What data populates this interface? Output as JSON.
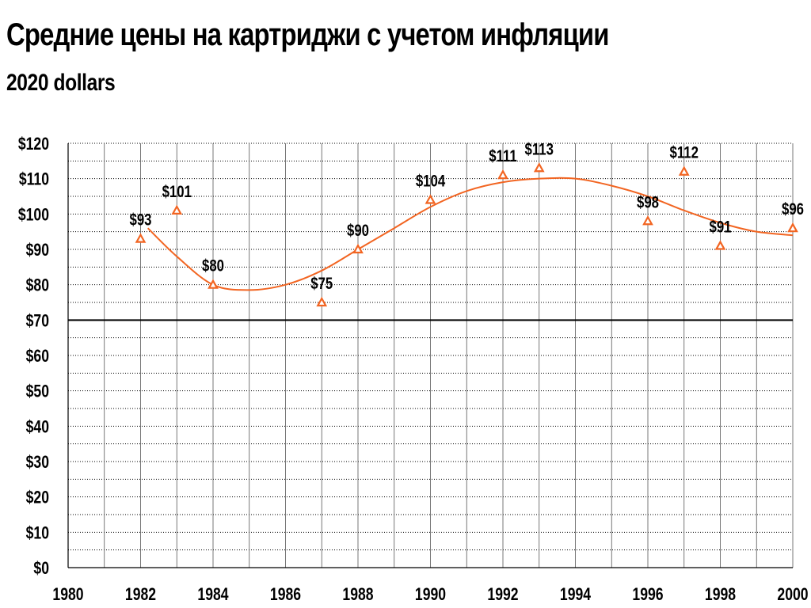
{
  "header": {
    "title": "Средние цены на картриджи с учетом инфляции",
    "subtitle": "2020 dollars"
  },
  "colors": {
    "series": "#f26522",
    "grid": "#000000",
    "reference_line": "#000000"
  },
  "chart_data": {
    "type": "scatter",
    "title": "Средние цены на картриджи с учетом инфляции",
    "subtitle": "2020 dollars",
    "xlabel": "",
    "ylabel": "",
    "xlim": [
      1980,
      2000
    ],
    "ylim": [
      0,
      120
    ],
    "x_ticks": [
      1980,
      1982,
      1984,
      1986,
      1988,
      1990,
      1992,
      1994,
      1996,
      1998,
      2000
    ],
    "y_ticks": [
      0,
      10,
      20,
      30,
      40,
      50,
      60,
      70,
      80,
      90,
      100,
      110,
      120
    ],
    "y_tick_labels": [
      "$0",
      "$10",
      "$20",
      "$30",
      "$40",
      "$50",
      "$60",
      "$70",
      "$80",
      "$90",
      "$100",
      "$110",
      "$120"
    ],
    "grid": true,
    "legend": "none",
    "reference_line_y": 70,
    "series": [
      {
        "marker": "triangle",
        "points": [
          {
            "x": 1982,
            "y": 93,
            "label": "$93"
          },
          {
            "x": 1983,
            "y": 101,
            "label": "$101"
          },
          {
            "x": 1984,
            "y": 80,
            "label": "$80"
          },
          {
            "x": 1987,
            "y": 75,
            "label": "$75"
          },
          {
            "x": 1988,
            "y": 90,
            "label": "$90"
          },
          {
            "x": 1990,
            "y": 104,
            "label": "$104"
          },
          {
            "x": 1992,
            "y": 111,
            "label": "$111"
          },
          {
            "x": 1993,
            "y": 113,
            "label": "$113"
          },
          {
            "x": 1996,
            "y": 98,
            "label": "$98"
          },
          {
            "x": 1997,
            "y": 112,
            "label": "$112"
          },
          {
            "x": 1998,
            "y": 91,
            "label": "$91"
          },
          {
            "x": 2000,
            "y": 96,
            "label": "$96"
          }
        ]
      }
    ],
    "trendline": {
      "type": "smooth",
      "points": [
        {
          "x": 1982.2,
          "y": 96
        },
        {
          "x": 1983,
          "y": 88
        },
        {
          "x": 1984,
          "y": 80
        },
        {
          "x": 1985,
          "y": 78.5
        },
        {
          "x": 1986,
          "y": 80
        },
        {
          "x": 1987,
          "y": 84
        },
        {
          "x": 1988,
          "y": 90
        },
        {
          "x": 1989,
          "y": 96
        },
        {
          "x": 1990,
          "y": 102
        },
        {
          "x": 1991,
          "y": 106.5
        },
        {
          "x": 1992,
          "y": 109
        },
        {
          "x": 1993,
          "y": 110
        },
        {
          "x": 1994,
          "y": 110
        },
        {
          "x": 1995,
          "y": 108
        },
        {
          "x": 1996,
          "y": 105
        },
        {
          "x": 1997,
          "y": 101
        },
        {
          "x": 1998,
          "y": 97.5
        },
        {
          "x": 1999,
          "y": 95
        },
        {
          "x": 2000,
          "y": 94
        }
      ]
    }
  }
}
